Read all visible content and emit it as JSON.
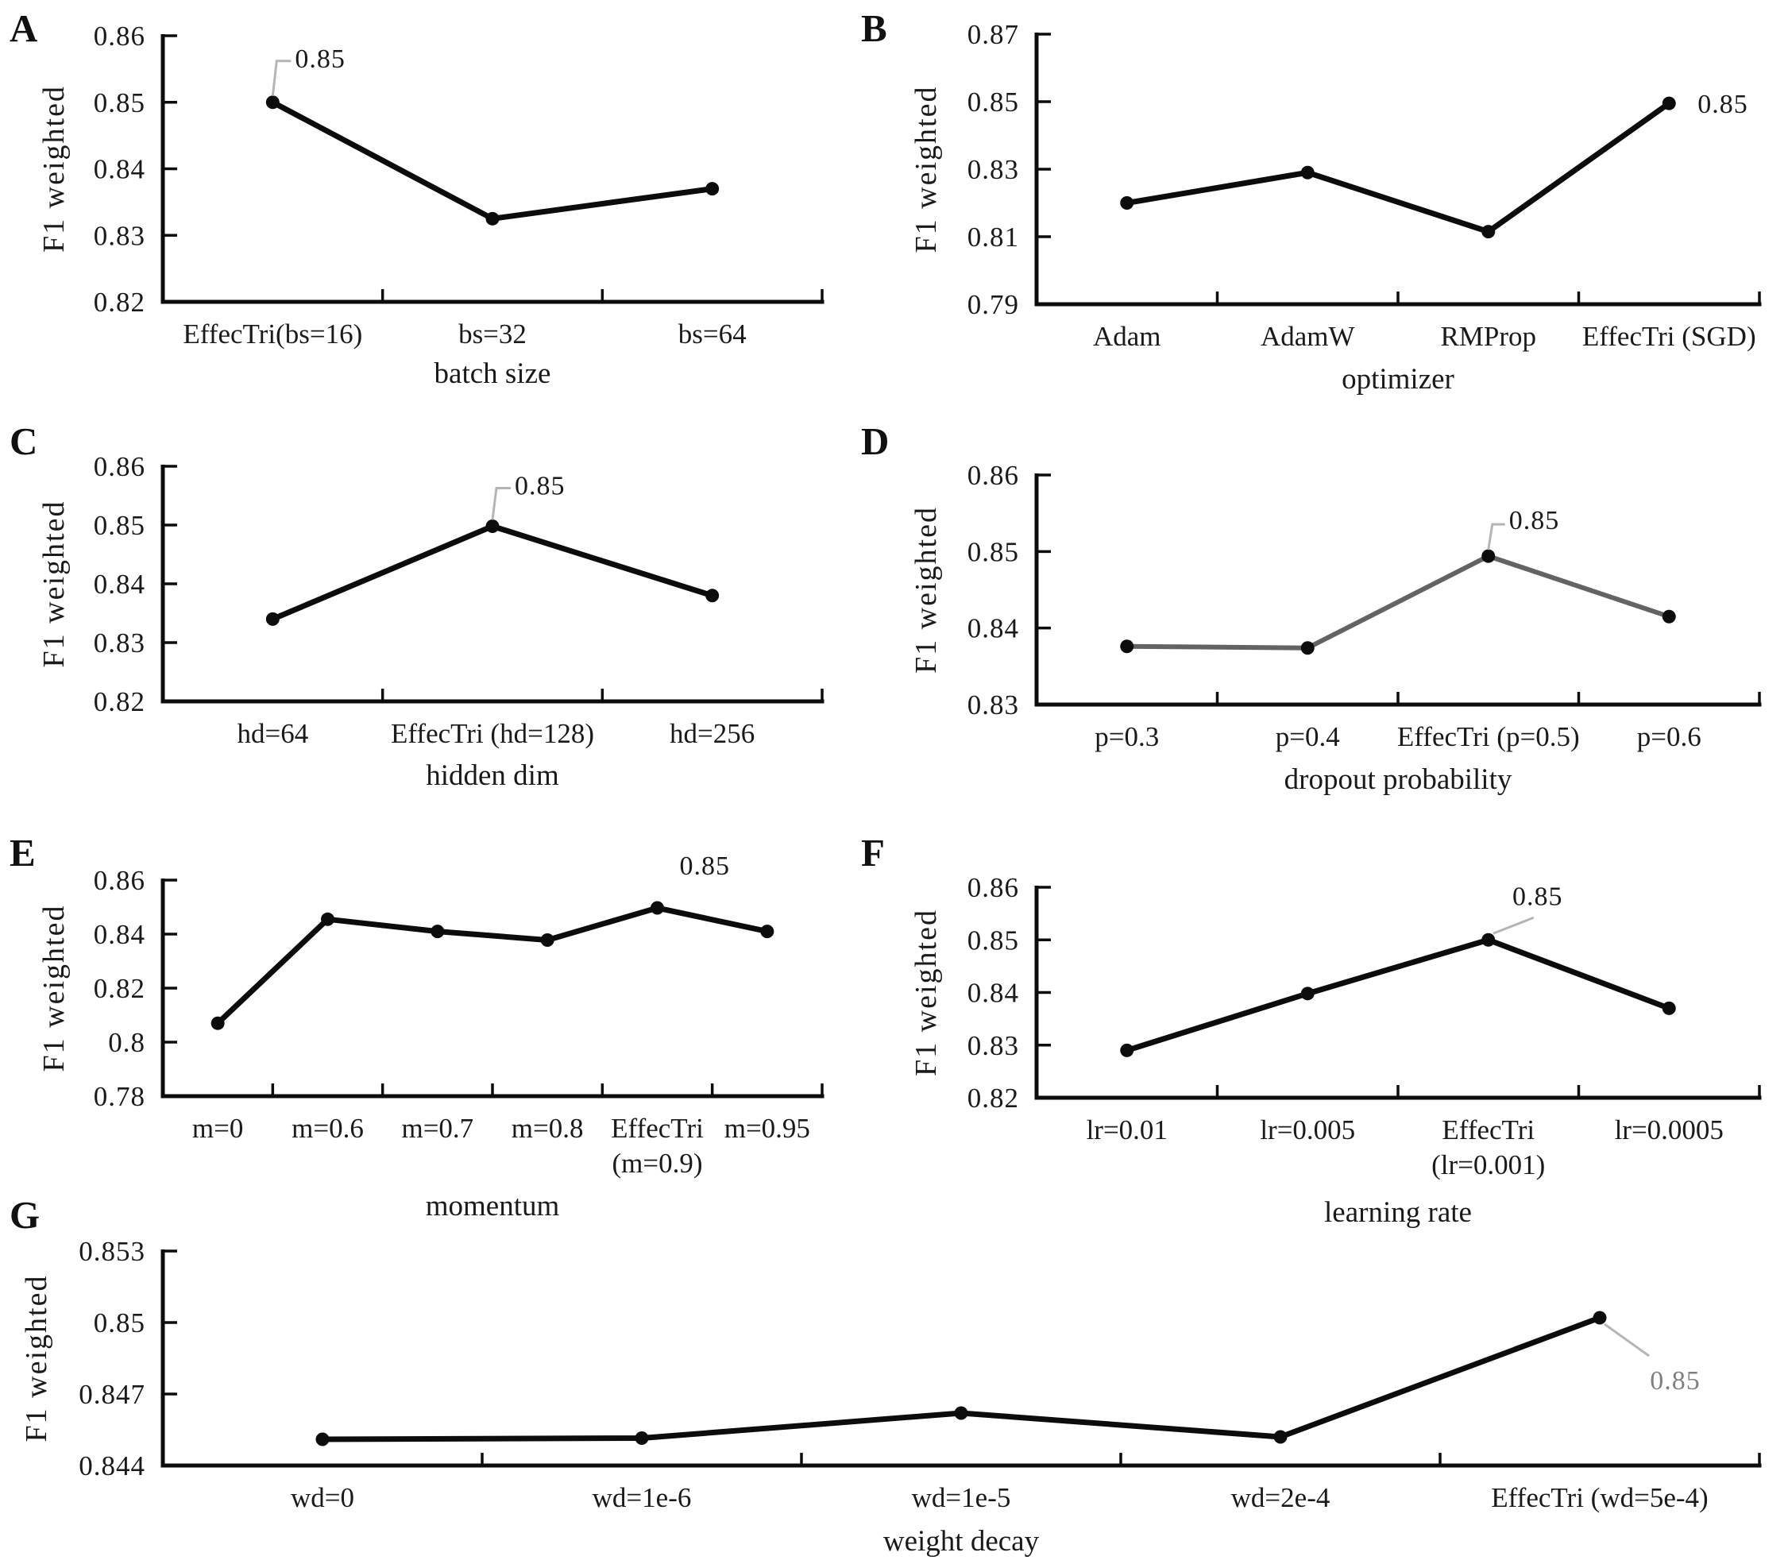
{
  "figure": {
    "description": "Hyperparameter ablation line charts, F1 weighted scores",
    "accent_black": "#0c0c0c",
    "gray_line": "#636363",
    "leader_gray": "#b5b5b5",
    "text_color": "#1a1a1a"
  },
  "chart_data": [
    {
      "panel": "A",
      "type": "line",
      "xlabel": "batch size",
      "ylabel": "F1 weighted",
      "categories": [
        "EffecTri(bs=16)",
        "bs=32",
        "bs=64"
      ],
      "values": [
        0.85,
        0.8325,
        0.837
      ],
      "yticks": [
        {
          "label": "0.86",
          "value": 0.86
        },
        {
          "label": "0.85",
          "value": 0.85
        },
        {
          "label": "0.84",
          "value": 0.84
        },
        {
          "label": "0.83",
          "value": 0.83
        },
        {
          "label": "0.82",
          "value": 0.82
        }
      ],
      "ylim": [
        0.82,
        0.86
      ],
      "grid": false,
      "legend": null,
      "line_color": "#0c0c0c",
      "annotation": {
        "text": "0.85",
        "point_index": 0,
        "color": "#1a1a1a"
      }
    },
    {
      "panel": "B",
      "type": "line",
      "xlabel": "optimizer",
      "ylabel": "F1 weighted",
      "categories": [
        "Adam",
        "AdamW",
        "RMProp",
        "EffecTri (SGD)"
      ],
      "values": [
        0.82,
        0.829,
        0.8115,
        0.8495
      ],
      "yticks": [
        {
          "label": "0.87",
          "value": 0.87
        },
        {
          "label": "0.85",
          "value": 0.85
        },
        {
          "label": "0.83",
          "value": 0.83
        },
        {
          "label": "0.81",
          "value": 0.81
        },
        {
          "label": "0.79",
          "value": 0.79
        }
      ],
      "ylim": [
        0.79,
        0.87
      ],
      "grid": false,
      "legend": null,
      "line_color": "#0c0c0c",
      "annotation": {
        "text": "0.85",
        "point_index": 3,
        "color": "#1a1a1a"
      }
    },
    {
      "panel": "C",
      "type": "line",
      "xlabel": "hidden dim",
      "ylabel": "F1 weighted",
      "categories": [
        "hd=64",
        "EffecTri (hd=128)",
        "hd=256"
      ],
      "values": [
        0.834,
        0.8498,
        0.838
      ],
      "yticks": [
        {
          "label": "0.86",
          "value": 0.86
        },
        {
          "label": "0.85",
          "value": 0.85
        },
        {
          "label": "0.84",
          "value": 0.84
        },
        {
          "label": "0.83",
          "value": 0.83
        },
        {
          "label": "0.82",
          "value": 0.82
        }
      ],
      "ylim": [
        0.82,
        0.86
      ],
      "grid": false,
      "legend": null,
      "line_color": "#0c0c0c",
      "annotation": {
        "text": "0.85",
        "point_index": 1,
        "color": "#1a1a1a"
      }
    },
    {
      "panel": "D",
      "type": "line",
      "xlabel": "dropout probability",
      "ylabel": "F1 weighted",
      "categories": [
        "p=0.3",
        "p=0.4",
        "EffecTri (p=0.5)",
        "p=0.6"
      ],
      "values": [
        0.8376,
        0.8374,
        0.8494,
        0.8415
      ],
      "yticks": [
        {
          "label": "0.86",
          "value": 0.86
        },
        {
          "label": "0.85",
          "value": 0.85
        },
        {
          "label": "0.84",
          "value": 0.84
        },
        {
          "label": "0.83",
          "value": 0.83
        }
      ],
      "ylim": [
        0.83,
        0.86
      ],
      "grid": false,
      "legend": null,
      "line_color": "#636363",
      "annotation": {
        "text": "0.85",
        "point_index": 2,
        "color": "#1a1a1a"
      }
    },
    {
      "panel": "E",
      "type": "line",
      "xlabel": "momentum",
      "ylabel": "F1 weighted",
      "categories": [
        "m=0",
        "m=0.6",
        "m=0.7",
        "m=0.8",
        "EffecTri\n(m=0.9)",
        "m=0.95"
      ],
      "values": [
        0.807,
        0.8455,
        0.841,
        0.8378,
        0.8497,
        0.841
      ],
      "yticks": [
        {
          "label": "0.86",
          "value": 0.86
        },
        {
          "label": "0.84",
          "value": 0.84
        },
        {
          "label": "0.82",
          "value": 0.82
        },
        {
          "label": "0.8",
          "value": 0.8
        },
        {
          "label": "0.78",
          "value": 0.78
        }
      ],
      "ylim": [
        0.78,
        0.86
      ],
      "grid": false,
      "legend": null,
      "line_color": "#0c0c0c",
      "annotation": {
        "text": "0.85",
        "point_index": 4,
        "color": "#1a1a1a"
      }
    },
    {
      "panel": "F",
      "type": "line",
      "xlabel": "learning rate",
      "ylabel": "F1 weighted",
      "categories": [
        "lr=0.01",
        "lr=0.005",
        "EffecTri\n(lr=0.001)",
        "lr=0.0005"
      ],
      "values": [
        0.829,
        0.8398,
        0.85,
        0.837
      ],
      "yticks": [
        {
          "label": "0.86",
          "value": 0.86
        },
        {
          "label": "0.85",
          "value": 0.85
        },
        {
          "label": "0.84",
          "value": 0.84
        },
        {
          "label": "0.83",
          "value": 0.83
        },
        {
          "label": "0.82",
          "value": 0.82
        }
      ],
      "ylim": [
        0.82,
        0.86
      ],
      "grid": false,
      "legend": null,
      "line_color": "#0c0c0c",
      "annotation": {
        "text": "0.85",
        "point_index": 2,
        "color": "#1a1a1a"
      }
    },
    {
      "panel": "G",
      "type": "line",
      "xlabel": "weight decay",
      "ylabel": "F1 weighted",
      "categories": [
        "wd=0",
        "wd=1e-6",
        "wd=1e-5",
        "wd=2e-4",
        "EffecTri (wd=5e-4)"
      ],
      "values": [
        0.8451,
        0.84515,
        0.8462,
        0.8452,
        0.8502
      ],
      "yticks": [
        {
          "label": "0.853",
          "value": 0.853
        },
        {
          "label": "0.85",
          "value": 0.85
        },
        {
          "label": "0.847",
          "value": 0.847
        },
        {
          "label": "0.844",
          "value": 0.844
        }
      ],
      "ylim": [
        0.844,
        0.853
      ],
      "grid": false,
      "legend": null,
      "line_color": "#0c0c0c",
      "annotation": {
        "text": "0.85",
        "point_index": 4,
        "color": "#7f7f7f"
      }
    }
  ]
}
